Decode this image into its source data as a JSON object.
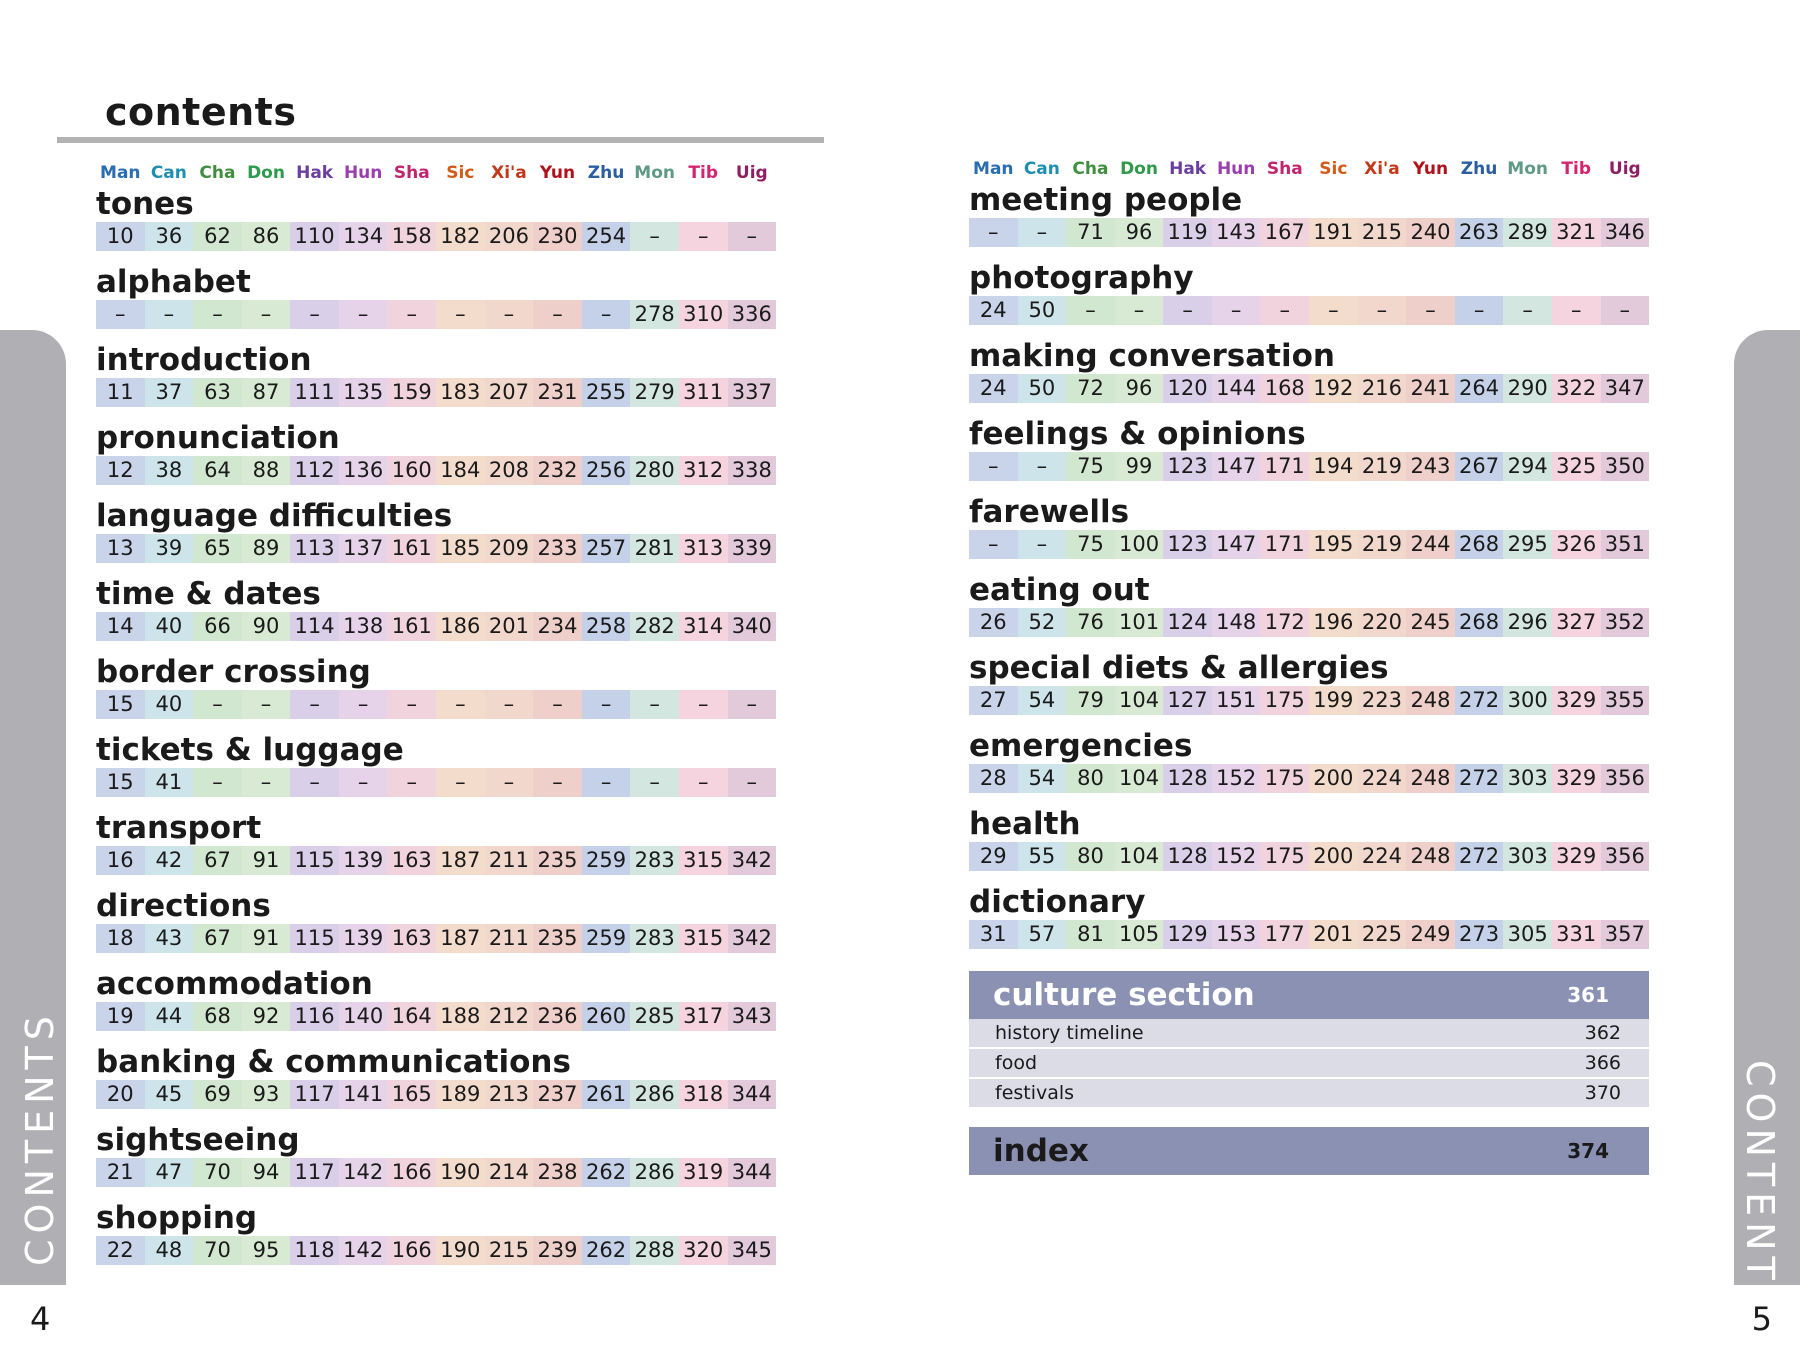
{
  "page": {
    "title": "contents",
    "side_label": "CONTENTS",
    "left_number": "4",
    "right_number": "5"
  },
  "languages": [
    {
      "abbr": "Man",
      "color": "#2a6db0",
      "bg": "#c9d3ea"
    },
    {
      "abbr": "Can",
      "color": "#1f8fb0",
      "bg": "#cde4ea"
    },
    {
      "abbr": "Cha",
      "color": "#3f8f3f",
      "bg": "#d2e7cf"
    },
    {
      "abbr": "Don",
      "color": "#2e9a4c",
      "bg": "#d8ead3"
    },
    {
      "abbr": "Hak",
      "color": "#6b3fa0",
      "bg": "#d9cfe9"
    },
    {
      "abbr": "Hun",
      "color": "#9b3fb0",
      "bg": "#e6d3ea"
    },
    {
      "abbr": "Sha",
      "color": "#c0266d",
      "bg": "#f1d3dd"
    },
    {
      "abbr": "Sic",
      "color": "#d45a1a",
      "bg": "#f4dccc"
    },
    {
      "abbr": "Xi'a",
      "color": "#c0391a",
      "bg": "#f2d8cc"
    },
    {
      "abbr": "Yun",
      "color": "#b0111a",
      "bg": "#efcfc9"
    },
    {
      "abbr": "Zhu",
      "color": "#2a5ea0",
      "bg": "#c5d1e8"
    },
    {
      "abbr": "Mon",
      "color": "#5f9a86",
      "bg": "#d3e6df"
    },
    {
      "abbr": "Tib",
      "color": "#d4246f",
      "bg": "#f5d4e0"
    },
    {
      "abbr": "Uig",
      "color": "#8f1f63",
      "bg": "#e2cadb"
    }
  ],
  "left_sections": [
    {
      "title": "tones",
      "pages": [
        "10",
        "36",
        "62",
        "86",
        "110",
        "134",
        "158",
        "182",
        "206",
        "230",
        "254",
        "–",
        "–",
        "–"
      ]
    },
    {
      "title": "alphabet",
      "pages": [
        "–",
        "–",
        "–",
        "–",
        "–",
        "–",
        "–",
        "–",
        "–",
        "–",
        "–",
        "278",
        "310",
        "336"
      ]
    },
    {
      "title": "introduction",
      "pages": [
        "11",
        "37",
        "63",
        "87",
        "111",
        "135",
        "159",
        "183",
        "207",
        "231",
        "255",
        "279",
        "311",
        "337"
      ]
    },
    {
      "title": "pronunciation",
      "pages": [
        "12",
        "38",
        "64",
        "88",
        "112",
        "136",
        "160",
        "184",
        "208",
        "232",
        "256",
        "280",
        "312",
        "338"
      ]
    },
    {
      "title": "language difficulties",
      "pages": [
        "13",
        "39",
        "65",
        "89",
        "113",
        "137",
        "161",
        "185",
        "209",
        "233",
        "257",
        "281",
        "313",
        "339"
      ]
    },
    {
      "title": "time & dates",
      "pages": [
        "14",
        "40",
        "66",
        "90",
        "114",
        "138",
        "161",
        "186",
        "201",
        "234",
        "258",
        "282",
        "314",
        "340"
      ]
    },
    {
      "title": "border crossing",
      "pages": [
        "15",
        "40",
        "–",
        "–",
        "–",
        "–",
        "–",
        "–",
        "–",
        "–",
        "–",
        "–",
        "–",
        "–"
      ]
    },
    {
      "title": "tickets & luggage",
      "pages": [
        "15",
        "41",
        "–",
        "–",
        "–",
        "–",
        "–",
        "–",
        "–",
        "–",
        "–",
        "–",
        "–",
        "–"
      ]
    },
    {
      "title": "transport",
      "pages": [
        "16",
        "42",
        "67",
        "91",
        "115",
        "139",
        "163",
        "187",
        "211",
        "235",
        "259",
        "283",
        "315",
        "342"
      ]
    },
    {
      "title": "directions",
      "pages": [
        "18",
        "43",
        "67",
        "91",
        "115",
        "139",
        "163",
        "187",
        "211",
        "235",
        "259",
        "283",
        "315",
        "342"
      ]
    },
    {
      "title": "accommodation",
      "pages": [
        "19",
        "44",
        "68",
        "92",
        "116",
        "140",
        "164",
        "188",
        "212",
        "236",
        "260",
        "285",
        "317",
        "343"
      ]
    },
    {
      "title": "banking & communications",
      "pages": [
        "20",
        "45",
        "69",
        "93",
        "117",
        "141",
        "165",
        "189",
        "213",
        "237",
        "261",
        "286",
        "318",
        "344"
      ]
    },
    {
      "title": "sightseeing",
      "pages": [
        "21",
        "47",
        "70",
        "94",
        "117",
        "142",
        "166",
        "190",
        "214",
        "238",
        "262",
        "286",
        "319",
        "344"
      ]
    },
    {
      "title": "shopping",
      "pages": [
        "22",
        "48",
        "70",
        "95",
        "118",
        "142",
        "166",
        "190",
        "215",
        "239",
        "262",
        "288",
        "320",
        "345"
      ]
    }
  ],
  "right_sections": [
    {
      "title": "meeting people",
      "pages": [
        "–",
        "–",
        "71",
        "96",
        "119",
        "143",
        "167",
        "191",
        "215",
        "240",
        "263",
        "289",
        "321",
        "346"
      ]
    },
    {
      "title": "photography",
      "pages": [
        "24",
        "50",
        "–",
        "–",
        "–",
        "–",
        "–",
        "–",
        "–",
        "–",
        "–",
        "–",
        "–",
        "–"
      ]
    },
    {
      "title": "making conversation",
      "pages": [
        "24",
        "50",
        "72",
        "96",
        "120",
        "144",
        "168",
        "192",
        "216",
        "241",
        "264",
        "290",
        "322",
        "347"
      ]
    },
    {
      "title": "feelings & opinions",
      "pages": [
        "–",
        "–",
        "75",
        "99",
        "123",
        "147",
        "171",
        "194",
        "219",
        "243",
        "267",
        "294",
        "325",
        "350"
      ]
    },
    {
      "title": "farewells",
      "pages": [
        "–",
        "–",
        "75",
        "100",
        "123",
        "147",
        "171",
        "195",
        "219",
        "244",
        "268",
        "295",
        "326",
        "351"
      ]
    },
    {
      "title": "eating out",
      "pages": [
        "26",
        "52",
        "76",
        "101",
        "124",
        "148",
        "172",
        "196",
        "220",
        "245",
        "268",
        "296",
        "327",
        "352"
      ]
    },
    {
      "title": "special diets & allergies",
      "pages": [
        "27",
        "54",
        "79",
        "104",
        "127",
        "151",
        "175",
        "199",
        "223",
        "248",
        "272",
        "300",
        "329",
        "355"
      ]
    },
    {
      "title": "emergencies",
      "pages": [
        "28",
        "54",
        "80",
        "104",
        "128",
        "152",
        "175",
        "200",
        "224",
        "248",
        "272",
        "303",
        "329",
        "356"
      ]
    },
    {
      "title": "health",
      "pages": [
        "29",
        "55",
        "80",
        "104",
        "128",
        "152",
        "175",
        "200",
        "224",
        "248",
        "272",
        "303",
        "329",
        "356"
      ]
    },
    {
      "title": "dictionary",
      "pages": [
        "31",
        "57",
        "81",
        "105",
        "129",
        "153",
        "177",
        "201",
        "225",
        "249",
        "273",
        "305",
        "331",
        "357"
      ]
    }
  ],
  "culture": {
    "title": "culture section",
    "page": "361",
    "items": [
      {
        "label": "history timeline",
        "page": "362"
      },
      {
        "label": "food",
        "page": "366"
      },
      {
        "label": "festivals",
        "page": "370"
      }
    ]
  },
  "index": {
    "title": "index",
    "page": "374"
  }
}
